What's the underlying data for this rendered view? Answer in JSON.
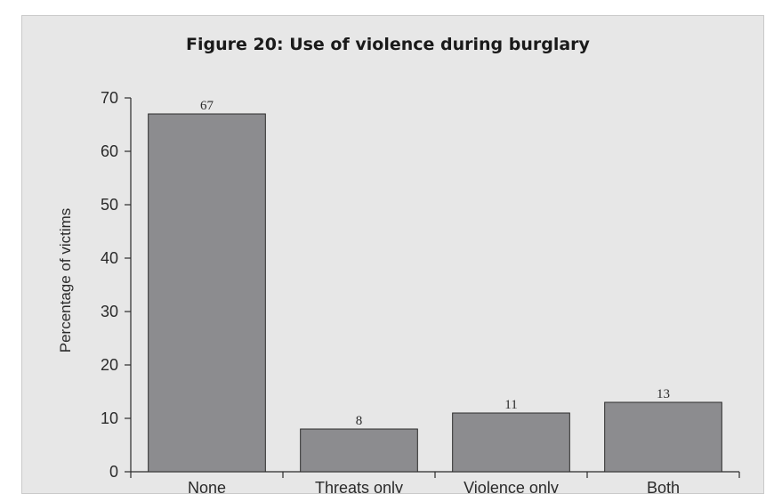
{
  "chart_data": {
    "type": "bar",
    "title": "Figure 20: Use of violence during burglary",
    "ylabel": "Percentage of victims",
    "xlabel": "",
    "categories": [
      "None",
      "Threats only",
      "Violence only",
      "Both"
    ],
    "values": [
      67,
      8,
      11,
      13
    ],
    "data_labels": [
      "67",
      "8",
      "11",
      "13"
    ],
    "ylim": [
      0,
      70
    ],
    "yticks": [
      0,
      10,
      20,
      30,
      40,
      50,
      60,
      70
    ],
    "grid": false,
    "legend": "none",
    "colors": {
      "bar_fill": "#8c8c8f",
      "bar_stroke": "#2b2b2b",
      "background": "#e7e7e7",
      "axis": "#2b2b2b"
    }
  }
}
